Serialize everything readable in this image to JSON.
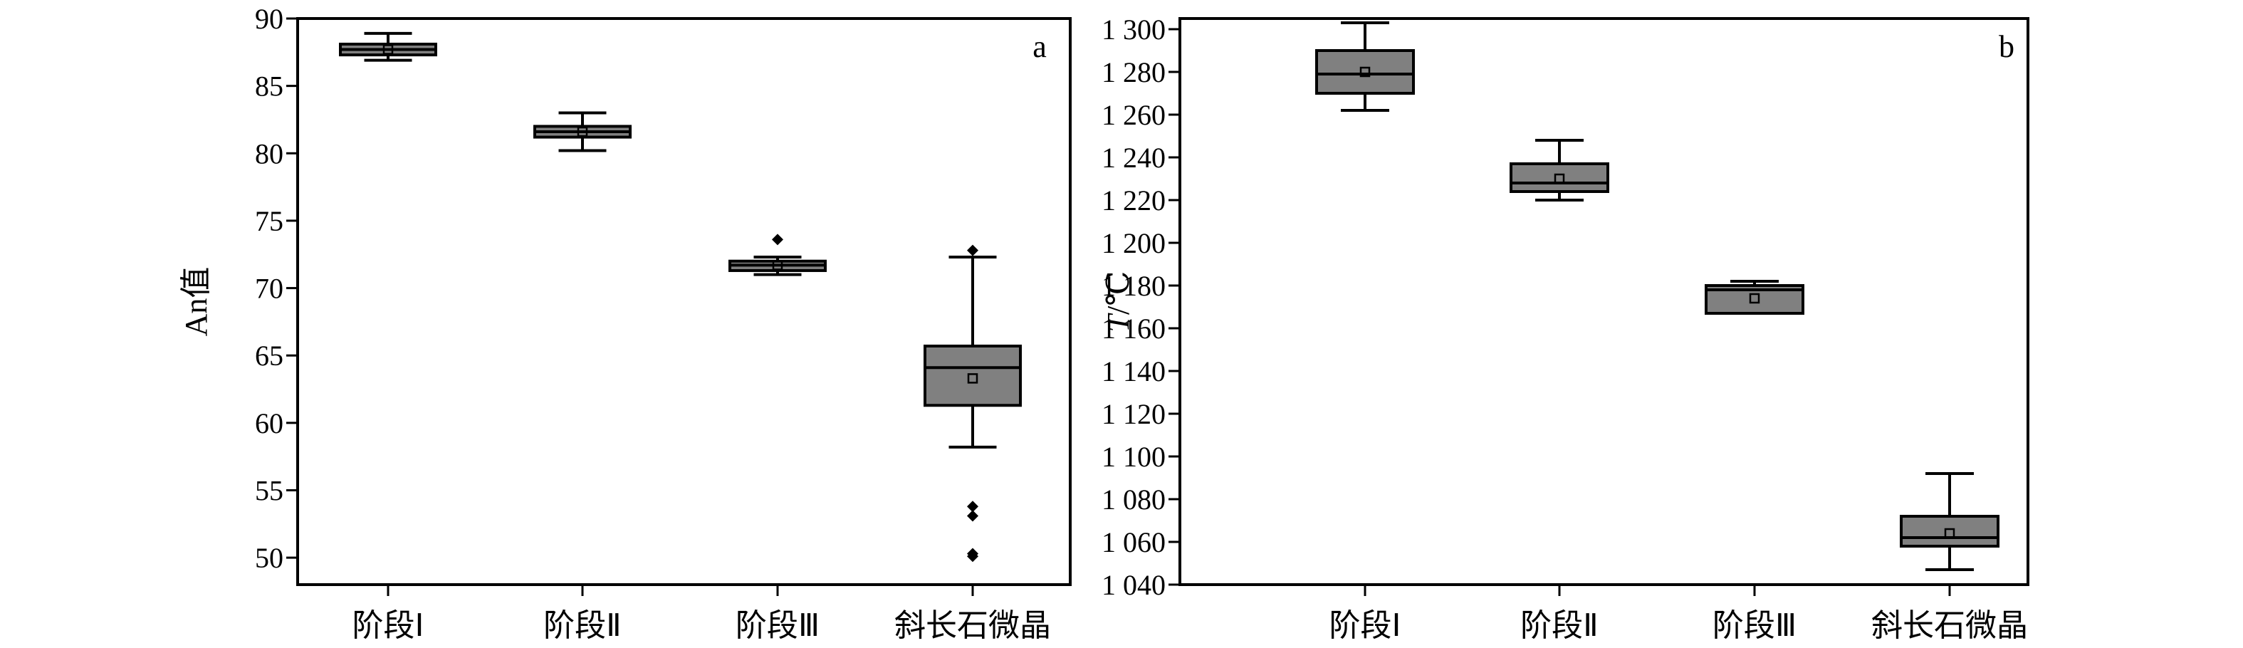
{
  "chart_data": [
    {
      "type": "box",
      "panel_label": "a",
      "ylabel": "An值",
      "ylim": [
        48,
        90
      ],
      "yticks": [
        50,
        55,
        60,
        65,
        70,
        75,
        80,
        85,
        90
      ],
      "categories": [
        "阶段Ⅰ",
        "阶段Ⅱ",
        "阶段Ⅲ",
        "斜长石微晶"
      ],
      "boxes": [
        {
          "whisker_low": 86.9,
          "q1": 87.3,
          "median": 87.7,
          "q3": 88.1,
          "whisker_high": 88.9,
          "mean": 87.7,
          "outliers": []
        },
        {
          "whisker_low": 80.2,
          "q1": 81.2,
          "median": 81.6,
          "q3": 82.0,
          "whisker_high": 83.0,
          "mean": 81.6,
          "outliers": []
        },
        {
          "whisker_low": 71.0,
          "q1": 71.3,
          "median": 71.7,
          "q3": 72.0,
          "whisker_high": 72.3,
          "mean": 71.7,
          "outliers": [
            73.6
          ]
        },
        {
          "whisker_low": 58.2,
          "q1": 61.3,
          "median": 64.1,
          "q3": 65.7,
          "whisker_high": 72.3,
          "mean": 63.3,
          "outliers": [
            72.8,
            53.8,
            53.1,
            50.3,
            50.1
          ]
        }
      ]
    },
    {
      "type": "box",
      "panel_label": "b",
      "ylabel_italic": "T",
      "ylabel_unit": "/℃",
      "ylim": [
        1040,
        1305
      ],
      "yticks": [
        1040,
        1060,
        1080,
        1100,
        1120,
        1140,
        1160,
        1180,
        1200,
        1220,
        1240,
        1260,
        1280,
        1300
      ],
      "ytick_labels": [
        "1 040",
        "1 060",
        "1 080",
        "1 100",
        "1 120",
        "1 140",
        "1 160",
        "1 180",
        "1 200",
        "1 220",
        "1 240",
        "1 260",
        "1 280",
        "1 300"
      ],
      "categories": [
        "阶段Ⅰ",
        "阶段Ⅱ",
        "阶段Ⅲ",
        "斜长石微晶"
      ],
      "boxes": [
        {
          "whisker_low": 1262,
          "q1": 1270,
          "median": 1279,
          "q3": 1290,
          "whisker_high": 1303,
          "mean": 1280,
          "outliers": []
        },
        {
          "whisker_low": 1220,
          "q1": 1224,
          "median": 1228,
          "q3": 1237,
          "whisker_high": 1248,
          "mean": 1230,
          "outliers": []
        },
        {
          "whisker_low": 1167,
          "q1": 1167,
          "median": 1178,
          "q3": 1180,
          "whisker_high": 1182,
          "mean": 1174,
          "outliers": []
        },
        {
          "whisker_low": 1047,
          "q1": 1058,
          "median": 1062,
          "q3": 1072,
          "whisker_high": 1092,
          "mean": 1064,
          "outliers": []
        }
      ]
    }
  ]
}
